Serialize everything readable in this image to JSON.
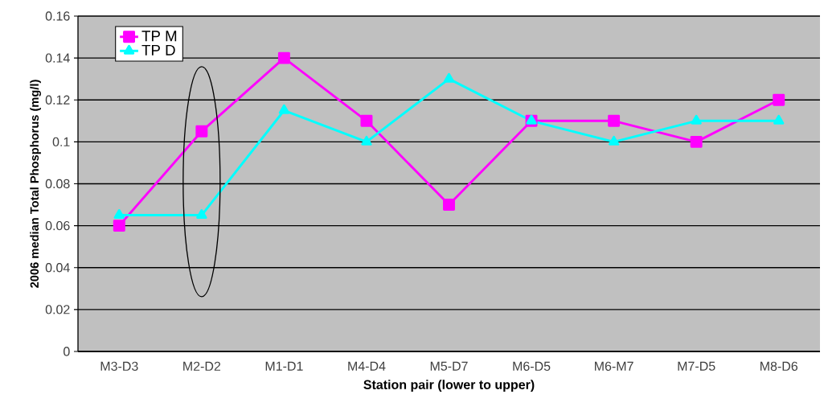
{
  "chart_data": {
    "type": "line",
    "xlabel": "Station pair (lower to upper)",
    "ylabel": "2006 median Total Phosphorus (mg/l)",
    "categories": [
      "M3-D3",
      "M2-D2",
      "M1-D1",
      "M4-D4",
      "M5-D7",
      "M6-D5",
      "M6-M7",
      "M7-D5",
      "M8-D6"
    ],
    "series": [
      {
        "name": "TP M",
        "color": "#ff00ff",
        "marker": "square",
        "values": [
          0.06,
          0.105,
          0.14,
          0.11,
          0.07,
          0.11,
          0.11,
          0.1,
          0.12
        ]
      },
      {
        "name": "TP D",
        "color": "#00ffff",
        "marker": "triangle",
        "values": [
          0.065,
          0.065,
          0.115,
          0.1,
          0.13,
          0.11,
          0.1,
          0.11,
          0.11
        ]
      }
    ],
    "ylim": [
      0,
      0.16
    ],
    "yticks": [
      0,
      0.02,
      0.04,
      0.06,
      0.08,
      0.1,
      0.12,
      0.14,
      0.16
    ],
    "grid": "y",
    "legend": "top left"
  }
}
